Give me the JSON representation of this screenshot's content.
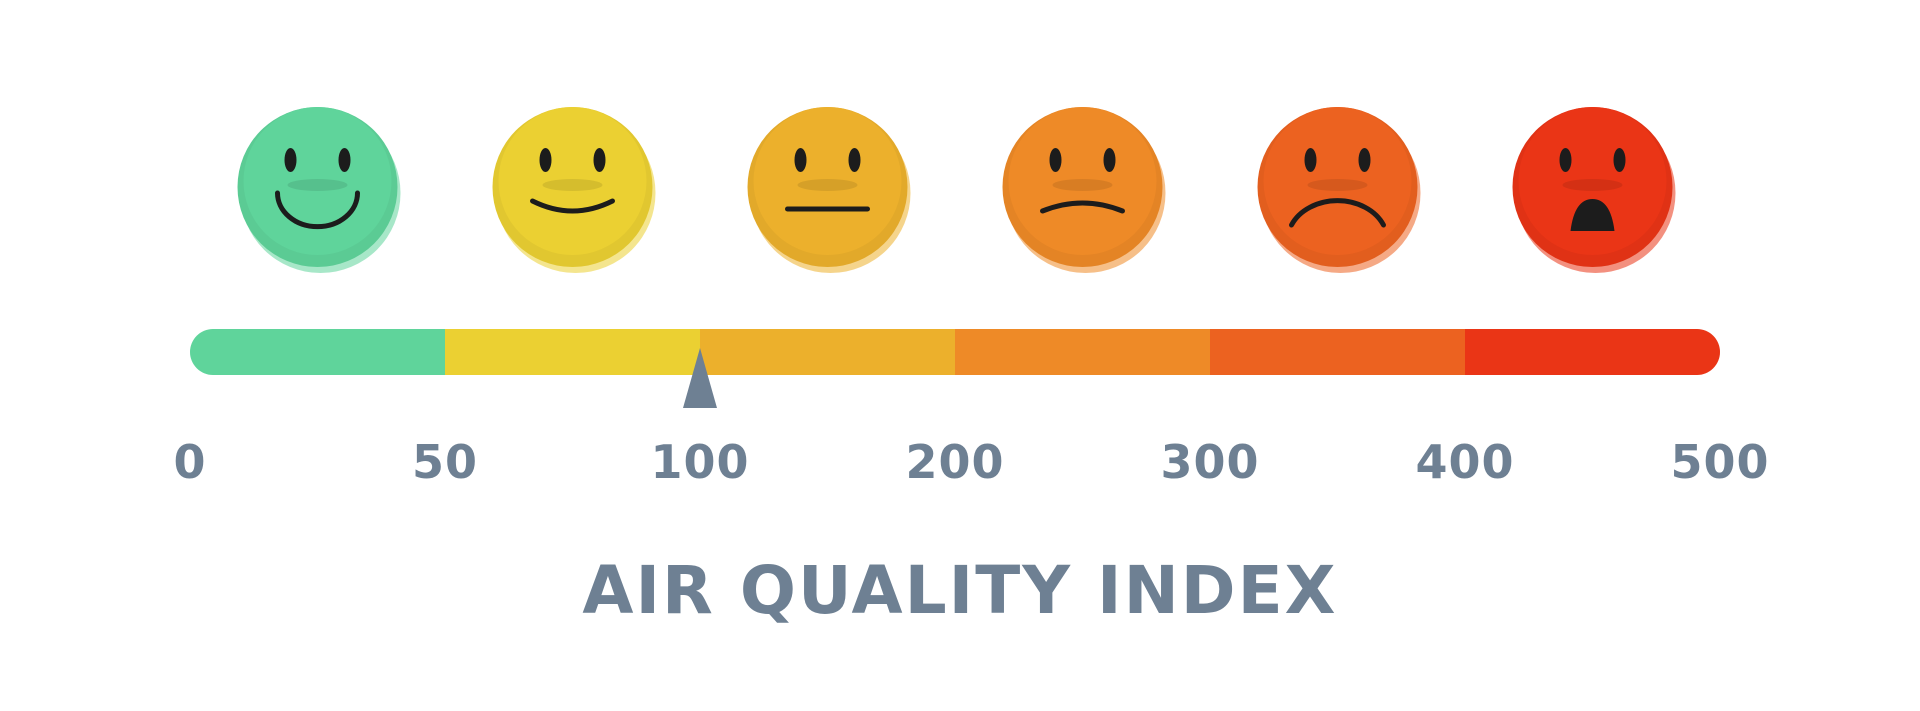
{
  "title": "AIR QUALITY INDEX",
  "text_color": "#6e8093",
  "pointer": {
    "value": 100,
    "color": "#6e8093"
  },
  "scale": {
    "ticks": [
      "0",
      "50",
      "100",
      "200",
      "300",
      "400",
      "500"
    ],
    "segments": [
      {
        "from": 0,
        "to": 50,
        "color": "#5fd49b",
        "face": "big-smile",
        "icon": "very-happy-face-icon"
      },
      {
        "from": 50,
        "to": 100,
        "color": "#ebd032",
        "face": "smile",
        "icon": "happy-face-icon"
      },
      {
        "from": 100,
        "to": 200,
        "color": "#ecb02c",
        "face": "neutral",
        "icon": "neutral-face-icon"
      },
      {
        "from": 200,
        "to": 300,
        "color": "#ee8a27",
        "face": "slight-frown",
        "icon": "slightly-sad-face-icon"
      },
      {
        "from": 300,
        "to": 400,
        "color": "#ec6220",
        "face": "frown",
        "icon": "sad-face-icon"
      },
      {
        "from": 400,
        "to": 500,
        "color": "#ea3516",
        "face": "shocked",
        "icon": "shocked-face-icon"
      }
    ]
  }
}
